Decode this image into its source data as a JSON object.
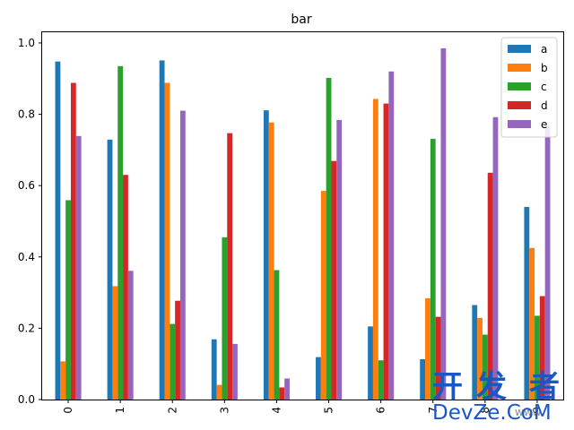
{
  "chart_data": {
    "type": "bar",
    "title": "bar",
    "xlabel": "",
    "ylabel": "",
    "categories": [
      "0",
      "1",
      "2",
      "3",
      "4",
      "5",
      "6",
      "7",
      "8",
      "9"
    ],
    "ylim": [
      0,
      1.03
    ],
    "yticks": [
      "0.0",
      "0.2",
      "0.4",
      "0.6",
      "0.8",
      "1.0"
    ],
    "grid": false,
    "legend_position": "top-right",
    "series": [
      {
        "name": "a",
        "color": "#1f77b4",
        "values": [
          0.948,
          0.729,
          0.951,
          0.169,
          0.811,
          0.119,
          0.205,
          0.113,
          0.265,
          0.54
        ]
      },
      {
        "name": "b",
        "color": "#ff7f0e",
        "values": [
          0.107,
          0.318,
          0.888,
          0.041,
          0.777,
          0.585,
          0.843,
          0.284,
          0.229,
          0.425
        ]
      },
      {
        "name": "c",
        "color": "#2ca02c",
        "values": [
          0.559,
          0.935,
          0.212,
          0.455,
          0.363,
          0.902,
          0.11,
          0.731,
          0.182,
          0.235
        ]
      },
      {
        "name": "d",
        "color": "#d62728",
        "values": [
          0.888,
          0.63,
          0.277,
          0.747,
          0.034,
          0.669,
          0.83,
          0.232,
          0.636,
          0.29
        ]
      },
      {
        "name": "e",
        "color": "#9467bd",
        "values": [
          0.739,
          0.361,
          0.81,
          0.156,
          0.059,
          0.784,
          0.92,
          0.985,
          0.792,
          0.77
        ]
      }
    ]
  },
  "watermark": {
    "cn_chars": [
      "开",
      "发",
      "者"
    ],
    "en": "DevZe.CoM",
    "small": "www"
  }
}
